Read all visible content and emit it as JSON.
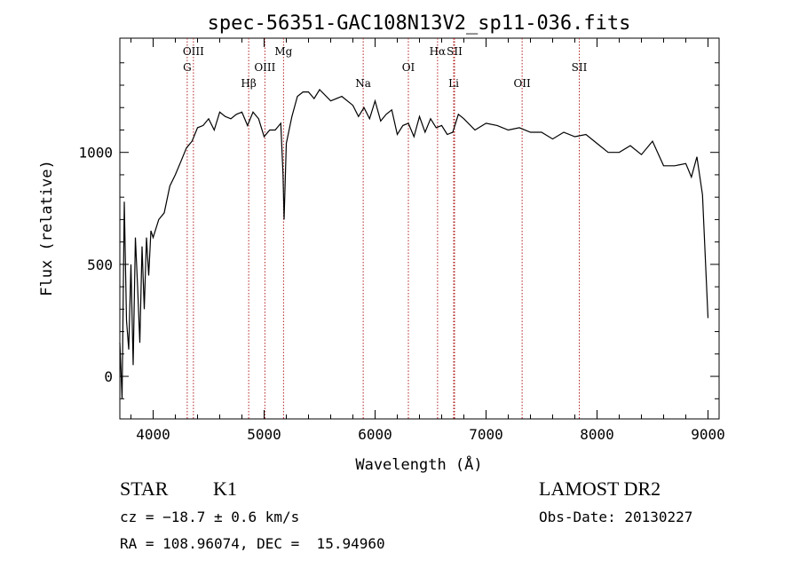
{
  "chart_data": {
    "type": "line",
    "title": "spec-56351-GAC108N13V2_sp11-036.fits",
    "xlabel": "Wavelength (Å)",
    "ylabel": "Flux (relative)",
    "xlim": [
      3700,
      9100
    ],
    "ylim": [
      -190,
      1510
    ],
    "x_ticks": [
      4000,
      5000,
      6000,
      7000,
      8000,
      9000
    ],
    "y_ticks": [
      0,
      500,
      1000
    ],
    "series": [
      {
        "x": [
          3700,
          3720,
          3740,
          3760,
          3780,
          3800,
          3820,
          3840,
          3860,
          3880,
          3900,
          3920,
          3940,
          3960,
          3980,
          4000,
          4050,
          4100,
          4150,
          4200,
          4250,
          4300,
          4350,
          4400,
          4450,
          4500,
          4550,
          4600,
          4650,
          4700,
          4750,
          4800,
          4850,
          4900,
          4950,
          5000,
          5050,
          5100,
          5150,
          5170,
          5180,
          5200,
          5250,
          5300,
          5350,
          5400,
          5450,
          5500,
          5600,
          5700,
          5800,
          5850,
          5900,
          5950,
          6000,
          6050,
          6100,
          6150,
          6200,
          6250,
          6300,
          6350,
          6400,
          6450,
          6500,
          6550,
          6600,
          6650,
          6700,
          6750,
          6800,
          6900,
          7000,
          7100,
          7200,
          7300,
          7400,
          7500,
          7600,
          7700,
          7800,
          7900,
          8000,
          8100,
          8200,
          8300,
          8400,
          8500,
          8600,
          8700,
          8800,
          8850,
          8900,
          8950,
          9000
        ],
        "y": [
          150,
          -100,
          780,
          250,
          120,
          500,
          50,
          620,
          400,
          150,
          580,
          300,
          620,
          450,
          650,
          620,
          700,
          730,
          850,
          900,
          960,
          1020,
          1050,
          1110,
          1120,
          1150,
          1100,
          1180,
          1160,
          1150,
          1170,
          1180,
          1120,
          1180,
          1150,
          1070,
          1100,
          1100,
          1130,
          900,
          700,
          1040,
          1160,
          1250,
          1270,
          1270,
          1240,
          1280,
          1230,
          1250,
          1210,
          1160,
          1200,
          1150,
          1230,
          1140,
          1170,
          1190,
          1080,
          1120,
          1130,
          1070,
          1160,
          1090,
          1150,
          1110,
          1120,
          1080,
          1090,
          1170,
          1150,
          1100,
          1130,
          1120,
          1100,
          1110,
          1090,
          1090,
          1060,
          1090,
          1070,
          1080,
          1040,
          1000,
          1000,
          1030,
          990,
          1050,
          940,
          940,
          950,
          890,
          980,
          810,
          260
        ]
      }
    ],
    "lines": [
      {
        "label": "OIII",
        "x": 4363
      },
      {
        "label": "G",
        "x": 4307
      },
      {
        "label": "Hβ",
        "x": 4861
      },
      {
        "label": "OIII",
        "x": 5007
      },
      {
        "label": "Mg",
        "x": 5175
      },
      {
        "label": "Na",
        "x": 5893
      },
      {
        "label": "OI",
        "x": 6300
      },
      {
        "label": "Hα",
        "x": 6563
      },
      {
        "label": "SII",
        "x": 6716
      },
      {
        "label": "Li",
        "x": 6708
      },
      {
        "label": "OII",
        "x": 7325
      },
      {
        "label": "SII",
        "x": 7840
      }
    ],
    "line_color": "#b22222",
    "grid": false
  },
  "info": {
    "object_type": "STAR",
    "subclass": "K1",
    "catalog": "LAMOST DR2",
    "cz": "cz = −18.7 ± 0.6 km/s",
    "obs_date": "Obs-Date: 20130227",
    "coords": "RA = 108.96074, DEC =  15.94960"
  }
}
